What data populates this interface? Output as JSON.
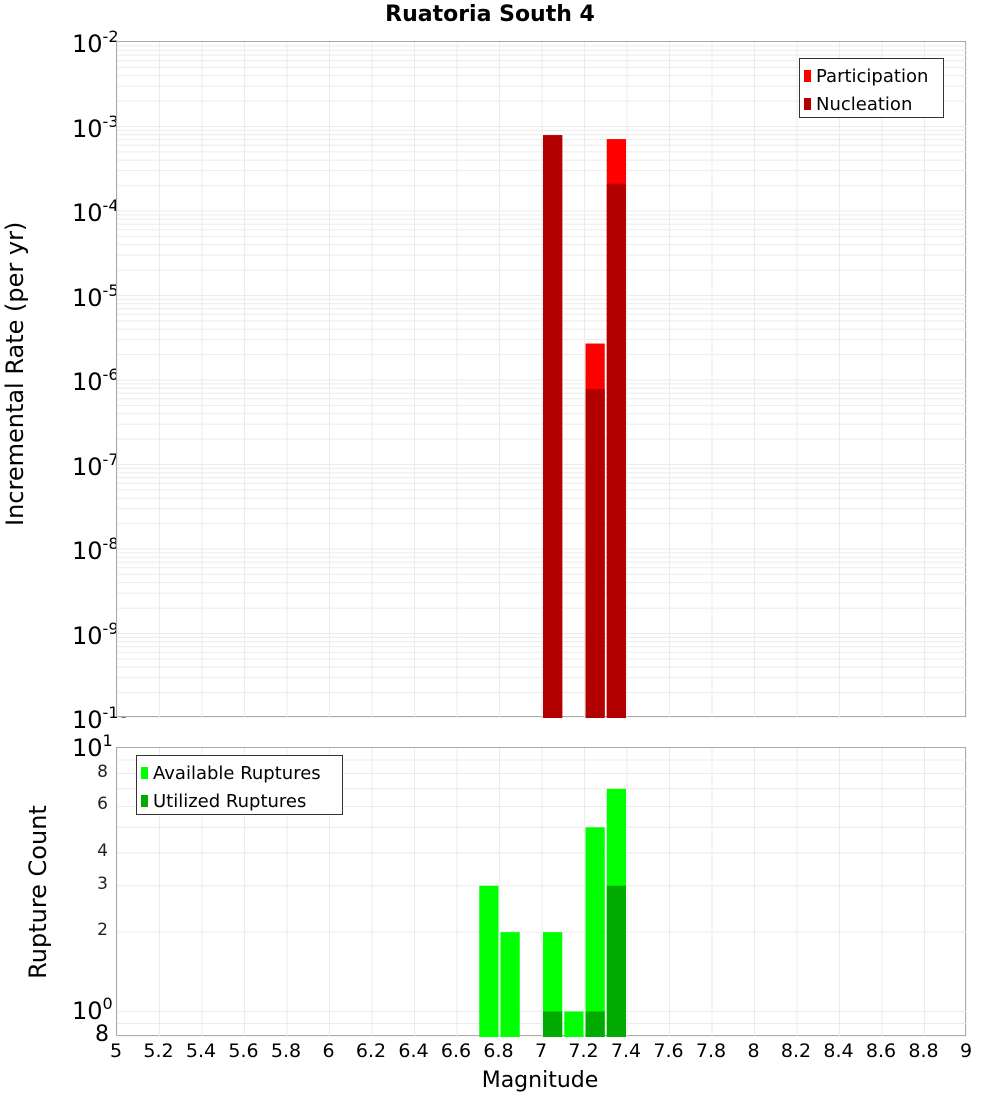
{
  "title": "Ruatoria South 4",
  "colors": {
    "participation": "#ff0000",
    "nucleation": "#b20000",
    "available": "#00ff00",
    "utilized": "#00aa00",
    "grid": "#ebebeb",
    "frame": "#aaaaaa"
  },
  "top_plot": {
    "ylabel": "Incremental Rate (per yr)",
    "yticks": [
      {
        "base": "10",
        "exp": "-2"
      },
      {
        "base": "10",
        "exp": "-3"
      },
      {
        "base": "10",
        "exp": "-4"
      },
      {
        "base": "10",
        "exp": "-5"
      },
      {
        "base": "10",
        "exp": "-6"
      },
      {
        "base": "10",
        "exp": "-7"
      },
      {
        "base": "10",
        "exp": "-8"
      },
      {
        "base": "10",
        "exp": "-9"
      },
      {
        "base": "10",
        "exp": "-10"
      }
    ],
    "legend": [
      "Participation",
      "Nucleation"
    ]
  },
  "bottom_plot": {
    "ylabel": "Rupture Count",
    "ytick_major_top": {
      "base": "10",
      "exp": "1"
    },
    "ytick_major_bottom": {
      "base": "10",
      "exp": "0"
    },
    "yticks_minor": [
      "8",
      "6",
      "4",
      "3",
      "2"
    ],
    "ytick_bottom_label": "8",
    "legend": [
      "Available Ruptures",
      "Utilized Ruptures"
    ]
  },
  "xaxis": {
    "label": "Magnitude",
    "ticks": [
      "5",
      "5.2",
      "5.4",
      "5.6",
      "5.8",
      "6",
      "6.2",
      "6.4",
      "6.6",
      "6.8",
      "7",
      "7.2",
      "7.4",
      "7.6",
      "7.8",
      "8",
      "8.2",
      "8.4",
      "8.6",
      "8.8",
      "9"
    ]
  },
  "chart_data": [
    {
      "type": "bar",
      "title": "Ruatoria South 4",
      "xlabel": "Magnitude",
      "ylabel": "Incremental Rate (per yr)",
      "yscale": "log",
      "xlim": [
        5,
        9
      ],
      "ylim": [
        1e-10,
        0.01
      ],
      "grid": true,
      "legend_position": "top-right",
      "categories": [
        7.05,
        7.25,
        7.35
      ],
      "series": [
        {
          "name": "Participation",
          "color": "#ff0000",
          "values": [
            0.00079,
            2.7e-06,
            0.00071
          ]
        },
        {
          "name": "Nucleation",
          "color": "#b20000",
          "values": [
            0.00079,
            7.8e-07,
            0.00021
          ]
        }
      ]
    },
    {
      "type": "bar",
      "xlabel": "Magnitude",
      "ylabel": "Rupture Count",
      "yscale": "log",
      "xlim": [
        5,
        9
      ],
      "ylim": [
        0.8,
        10
      ],
      "grid": true,
      "legend_position": "top-left",
      "categories": [
        6.75,
        6.85,
        7.05,
        7.15,
        7.25,
        7.35
      ],
      "series": [
        {
          "name": "Available Ruptures",
          "color": "#00ff00",
          "values": [
            3,
            2,
            2,
            1,
            5,
            7
          ]
        },
        {
          "name": "Utilized Ruptures",
          "color": "#00aa00",
          "values": [
            0,
            0,
            1,
            0,
            1,
            3
          ]
        }
      ]
    }
  ]
}
